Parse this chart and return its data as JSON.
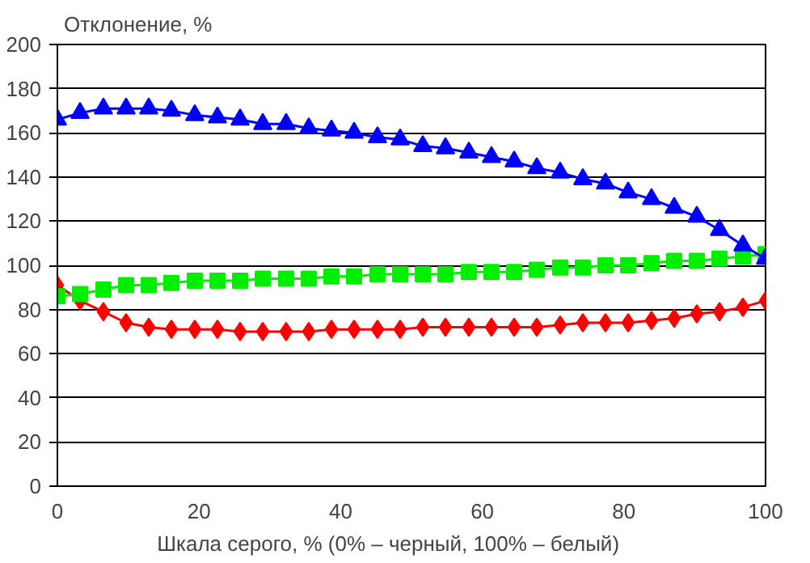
{
  "chart_data": {
    "type": "line",
    "ylabel": "Отклонение,  %",
    "xlabel": "Шкала  серого,  %  (0%  –  черный,  100%  –  белый)",
    "x": [
      0,
      3.2,
      6.5,
      9.7,
      12.9,
      16.1,
      19.4,
      22.6,
      25.8,
      29.0,
      32.3,
      35.5,
      38.7,
      41.9,
      45.2,
      48.4,
      51.6,
      54.8,
      58.1,
      61.3,
      64.5,
      67.7,
      71.0,
      74.2,
      77.4,
      80.6,
      83.9,
      87.1,
      90.3,
      93.5,
      96.8,
      100
    ],
    "xlim": [
      0,
      100
    ],
    "xticks": [
      0,
      20,
      40,
      60,
      80,
      100
    ],
    "ylim": [
      0,
      200
    ],
    "yticks": [
      0,
      20,
      40,
      60,
      80,
      100,
      120,
      140,
      160,
      180,
      200
    ],
    "grid": "y",
    "series": [
      {
        "color": "#0000ff",
        "marker": "triangle",
        "values": [
          166,
          169,
          171,
          171,
          171,
          170,
          168,
          167,
          166,
          164,
          164,
          162,
          161,
          160,
          158,
          157,
          154,
          153,
          151,
          149,
          147,
          144,
          142,
          139,
          137,
          133,
          130,
          126,
          122,
          116,
          109,
          103
        ]
      },
      {
        "color": "#00ee00",
        "marker": "square",
        "values": [
          86,
          87,
          89,
          91,
          91,
          92,
          93,
          93,
          93,
          94,
          94,
          94,
          95,
          95,
          96,
          96,
          96,
          96,
          97,
          97,
          97,
          98,
          99,
          99,
          100,
          100,
          101,
          102,
          102,
          103,
          104,
          105
        ]
      },
      {
        "color": "#ff0000",
        "marker": "diamond",
        "values": [
          91,
          84,
          79,
          74,
          72,
          71,
          71,
          71,
          70,
          70,
          70,
          70,
          71,
          71,
          71,
          71,
          72,
          72,
          72,
          72,
          72,
          72,
          73,
          74,
          74,
          74,
          75,
          76,
          78,
          79,
          81,
          84
        ]
      }
    ]
  }
}
